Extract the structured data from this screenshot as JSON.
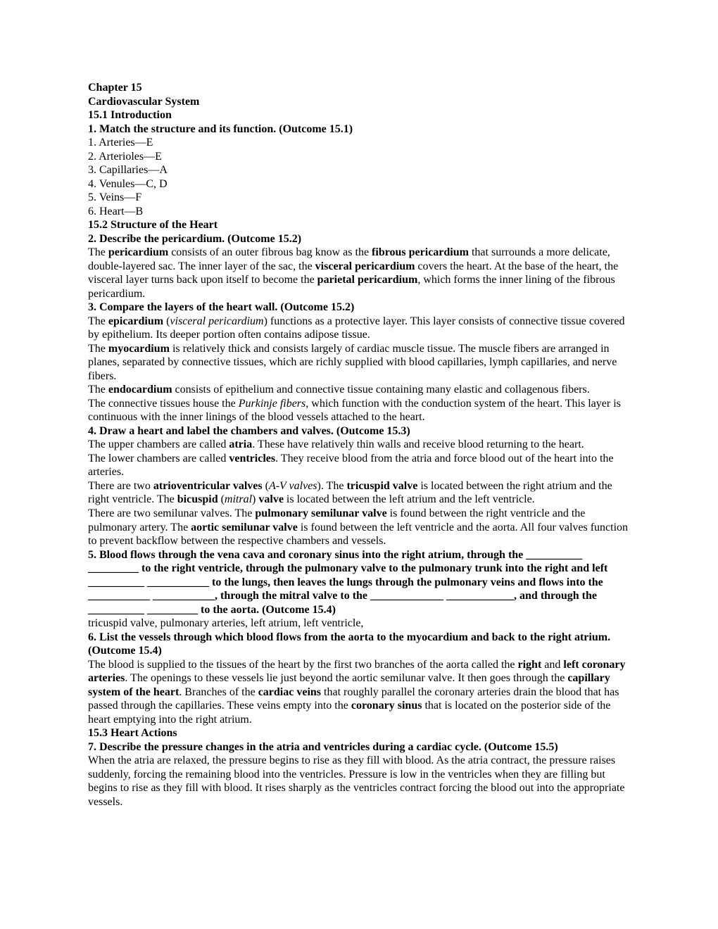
{
  "doc": {
    "h1": "Chapter 15",
    "h2": "Cardiovascular System",
    "s1": {
      "head": "15.1 Introduction",
      "q1": "1.  Match the structure and its function. (Outcome 15.1)",
      "a1": "1. Arteries—E",
      "a2": "2. Arterioles—E",
      "a3": "3. Capillaries—A",
      "a4": "4. Venules—C, D",
      "a5": "5. Veins—F",
      "a6": "6. Heart—B"
    },
    "s2": {
      "head": "15.2 Structure of the Heart",
      "q2": "2.  Describe the pericardium. (Outcome 15.2)",
      "p2_1a": "The ",
      "p2_1b": "pericardium",
      "p2_1c": " consists of an outer fibrous bag know as the ",
      "p2_1d": "fibrous pericardium",
      "p2_1e": " that surrounds a more delicate, double-layered sac. The inner layer of the sac, the ",
      "p2_1f": "visceral pericardium",
      "p2_1g": " covers the heart. At the base of the heart, the visceral layer turns back upon itself to become the ",
      "p2_1h": "parietal pericardium",
      "p2_1i": ", which forms the inner lining of the fibrous pericardium.",
      "q3": "3.  Compare the layers of the heart wall. (Outcome 15.2)",
      "p3_1a": "The ",
      "p3_1b": "epicardium",
      "p3_1c": " (",
      "p3_1d": "visceral pericardium",
      "p3_1e": ") functions as a protective layer. This layer consists of connective tissue covered by epithelium. Its deeper portion often contains adipose tissue.",
      "p3_2a": "The ",
      "p3_2b": "myocardium",
      "p3_2c": " is relatively thick and consists largely of cardiac muscle tissue. The muscle fibers are arranged in planes, separated by connective tissues, which are richly supplied with blood capillaries, lymph capillaries, and nerve fibers.",
      "p3_3a": "The ",
      "p3_3b": "endocardium",
      "p3_3c": " consists of epithelium and connective tissue containing many elastic and collagenous fibers.",
      "p3_4a": "The connective tissues house the ",
      "p3_4b": "Purkinje fibers",
      "p3_4c": ", which function with the conduction system of the heart. This layer is continuous with the inner linings of the blood vessels attached to the heart.",
      "q4": "4.  Draw a heart and label the chambers and valves. (Outcome 15.3)",
      "p4_1a": "The upper chambers are called ",
      "p4_1b": "atria",
      "p4_1c": ". These have relatively thin walls and receive blood returning to the heart.",
      "p4_2a": "The lower chambers are called ",
      "p4_2b": "ventricles",
      "p4_2c": ". They receive blood from the atria and force blood out of the heart into the arteries.",
      "p4_3a": "There are two ",
      "p4_3b": "atrioventricular valves",
      "p4_3c": " (",
      "p4_3d": "A-V valves",
      "p4_3e": "). The ",
      "p4_3f": "tricuspid valve",
      "p4_3g": " is located between the right atrium and the right ventricle. The ",
      "p4_3h": "bicuspid",
      "p4_3i": " (",
      "p4_3j": "mitral",
      "p4_3k": ") ",
      "p4_3l": "valve",
      "p4_3m": " is located between the left atrium and the left ventricle.",
      "p4_4a": "There are two semilunar valves. The ",
      "p4_4b": "pulmonary semilunar valve",
      "p4_4c": " is found between the right ventricle and the pulmonary artery. The ",
      "p4_4d": "aortic semilunar valve",
      "p4_4e": " is found between the left ventricle and the aorta. All four valves function to prevent backflow between the respective chambers and vessels.",
      "q5a": "5.  Blood flows through the vena cava and coronary sinus into the right atrium, through the __________ _________ to the right ventricle, through the pulmonary valve to the pulmonary trunk into the right and left __________ ___________ to the lungs, then leaves the lungs through the pulmonary veins and flows into the ___________ ___________, through the mitral valve to the _____________ ____________, and through the __________ _________ to the aorta. (Outcome 15.4)",
      "p5_ans": "tricuspid valve, pulmonary arteries, left atrium, left ventricle,",
      "q6": "6.  List the vessels through which blood flows from the aorta to the myocardium and back to the right atrium. (Outcome 15.4)",
      "p6_1a": "The blood is supplied to the tissues of the heart by the first two branches of the aorta called the ",
      "p6_1b": "right",
      "p6_1c": " and ",
      "p6_1d": "left coronary arteries",
      "p6_1e": ". The openings to these vessels lie just beyond the aortic semilunar valve. It then goes through the ",
      "p6_1f": "capillary system of the heart",
      "p6_1g": ". Branches of the ",
      "p6_1h": "cardiac veins",
      "p6_1i": " that roughly parallel the coronary arteries drain the blood that has passed through the capillaries. These veins empty into the ",
      "p6_1j": "coronary sinus",
      "p6_1k": " that is located on the posterior side of the heart emptying into the right atrium."
    },
    "s3": {
      "head": "15.3 Heart Actions",
      "q7": "7.  Describe the pressure changes in the atria and ventricles during a cardiac cycle. (Outcome 15.5)",
      "p7": "When the atria are relaxed, the pressure begins to rise as they fill with blood. As the atria contract, the pressure raises suddenly, forcing the remaining blood into the ventricles. Pressure is low in the ventricles when they are filling but begins to rise as they fill with blood. It rises sharply as the ventricles contract forcing the blood out into the appropriate vessels."
    }
  }
}
